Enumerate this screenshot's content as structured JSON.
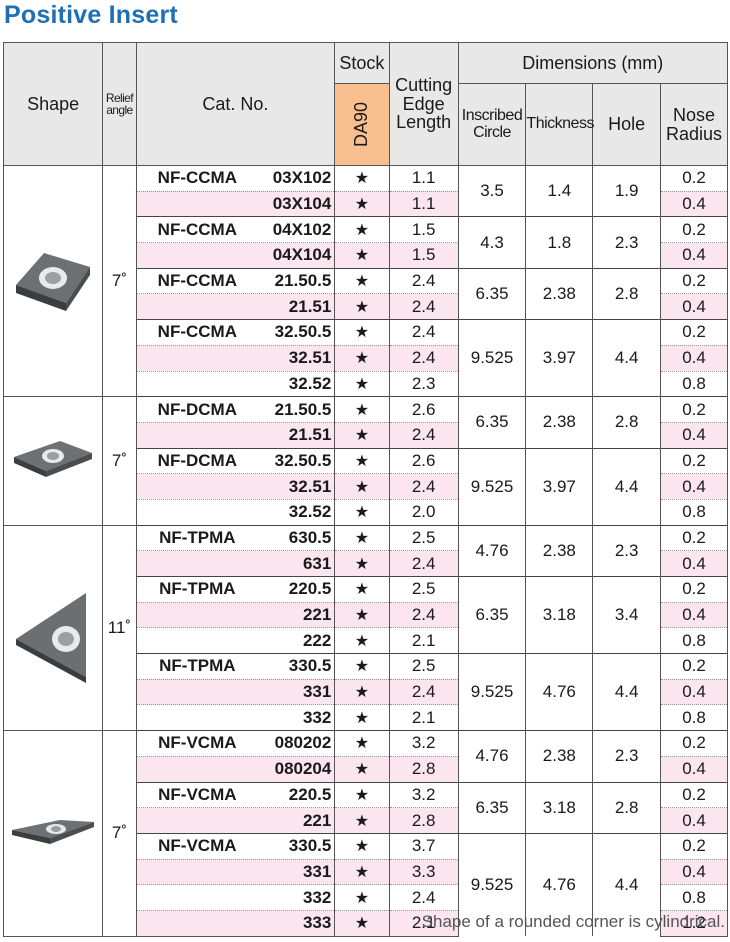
{
  "title": "Positive Insert",
  "headers": {
    "shape": "Shape",
    "relief_l1": "Relief",
    "relief_l2": "angle",
    "cat_no": "Cat. No.",
    "stock": "Stock",
    "grade": "DA90",
    "cel_l1": "Cutting",
    "cel_l2": "Edge",
    "cel_l3": "Length",
    "dimensions": "Dimensions (mm)",
    "ic_l1": "Inscribed",
    "ic_l2": "Circle",
    "thickness": "Thickness",
    "hole": "Hole",
    "nose_l1": "Nose",
    "nose_l2": "Radius"
  },
  "stock_symbol": "★",
  "groups": [
    {
      "shape": "CCMA-icon",
      "relief": "7˚",
      "subgroups": [
        {
          "prefix": "NF-CCMA",
          "ic": "3.5",
          "thickness": "1.4",
          "hole": "1.9",
          "rows": [
            {
              "code": "03X102",
              "cel": "1.1",
              "nose": "0.2"
            },
            {
              "code": "03X104",
              "cel": "1.1",
              "nose": "0.4"
            }
          ]
        },
        {
          "prefix": "NF-CCMA",
          "ic": "4.3",
          "thickness": "1.8",
          "hole": "2.3",
          "rows": [
            {
              "code": "04X102",
              "cel": "1.5",
              "nose": "0.2"
            },
            {
              "code": "04X104",
              "cel": "1.5",
              "nose": "0.4"
            }
          ]
        },
        {
          "prefix": "NF-CCMA",
          "ic": "6.35",
          "thickness": "2.38",
          "hole": "2.8",
          "rows": [
            {
              "code": "21.50.5",
              "cel": "2.4",
              "nose": "0.2"
            },
            {
              "code": "21.51",
              "cel": "2.4",
              "nose": "0.4"
            }
          ]
        },
        {
          "prefix": "NF-CCMA",
          "ic": "9.525",
          "thickness": "3.97",
          "hole": "4.4",
          "rows": [
            {
              "code": "32.50.5",
              "cel": "2.4",
              "nose": "0.2"
            },
            {
              "code": "32.51",
              "cel": "2.4",
              "nose": "0.4"
            },
            {
              "code": "32.52",
              "cel": "2.3",
              "nose": "0.8"
            }
          ]
        }
      ]
    },
    {
      "shape": "DCMA-icon",
      "relief": "7˚",
      "subgroups": [
        {
          "prefix": "NF-DCMA",
          "ic": "6.35",
          "thickness": "2.38",
          "hole": "2.8",
          "rows": [
            {
              "code": "21.50.5",
              "cel": "2.6",
              "nose": "0.2"
            },
            {
              "code": "21.51",
              "cel": "2.4",
              "nose": "0.4"
            }
          ]
        },
        {
          "prefix": "NF-DCMA",
          "ic": "9.525",
          "thickness": "3.97",
          "hole": "4.4",
          "rows": [
            {
              "code": "32.50.5",
              "cel": "2.6",
              "nose": "0.2"
            },
            {
              "code": "32.51",
              "cel": "2.4",
              "nose": "0.4"
            },
            {
              "code": "32.52",
              "cel": "2.0",
              "nose": "0.8"
            }
          ]
        }
      ]
    },
    {
      "shape": "TPMA-icon",
      "relief": "11˚",
      "subgroups": [
        {
          "prefix": "NF-TPMA",
          "ic": "4.76",
          "thickness": "2.38",
          "hole": "2.3",
          "rows": [
            {
              "code": "630.5",
              "cel": "2.5",
              "nose": "0.2"
            },
            {
              "code": "631",
              "cel": "2.4",
              "nose": "0.4"
            }
          ]
        },
        {
          "prefix": "NF-TPMA",
          "ic": "6.35",
          "thickness": "3.18",
          "hole": "3.4",
          "rows": [
            {
              "code": "220.5",
              "cel": "2.5",
              "nose": "0.2"
            },
            {
              "code": "221",
              "cel": "2.4",
              "nose": "0.4"
            },
            {
              "code": "222",
              "cel": "2.1",
              "nose": "0.8"
            }
          ]
        },
        {
          "prefix": "NF-TPMA",
          "ic": "9.525",
          "thickness": "4.76",
          "hole": "4.4",
          "rows": [
            {
              "code": "330.5",
              "cel": "2.5",
              "nose": "0.2"
            },
            {
              "code": "331",
              "cel": "2.4",
              "nose": "0.4"
            },
            {
              "code": "332",
              "cel": "2.1",
              "nose": "0.8"
            }
          ]
        }
      ]
    },
    {
      "shape": "VCMA-icon",
      "relief": "7˚",
      "subgroups": [
        {
          "prefix": "NF-VCMA",
          "ic": "4.76",
          "thickness": "2.38",
          "hole": "2.3",
          "rows": [
            {
              "code": "080202",
              "cel": "3.2",
              "nose": "0.2"
            },
            {
              "code": "080204",
              "cel": "2.8",
              "nose": "0.4"
            }
          ]
        },
        {
          "prefix": "NF-VCMA",
          "ic": "6.35",
          "thickness": "3.18",
          "hole": "2.8",
          "rows": [
            {
              "code": "220.5",
              "cel": "3.2",
              "nose": "0.2"
            },
            {
              "code": "221",
              "cel": "2.8",
              "nose": "0.4"
            }
          ]
        },
        {
          "prefix": "NF-VCMA",
          "ic": "9.525",
          "thickness": "4.76",
          "hole": "4.4",
          "rows": [
            {
              "code": "330.5",
              "cel": "3.7",
              "nose": "0.2"
            },
            {
              "code": "331",
              "cel": "3.3",
              "nose": "0.4"
            },
            {
              "code": "332",
              "cel": "2.4",
              "nose": "0.8"
            },
            {
              "code": "333",
              "cel": "2.1",
              "nose": "1.2"
            }
          ]
        }
      ]
    }
  ],
  "note": "Shape of a rounded corner is cylindrical."
}
